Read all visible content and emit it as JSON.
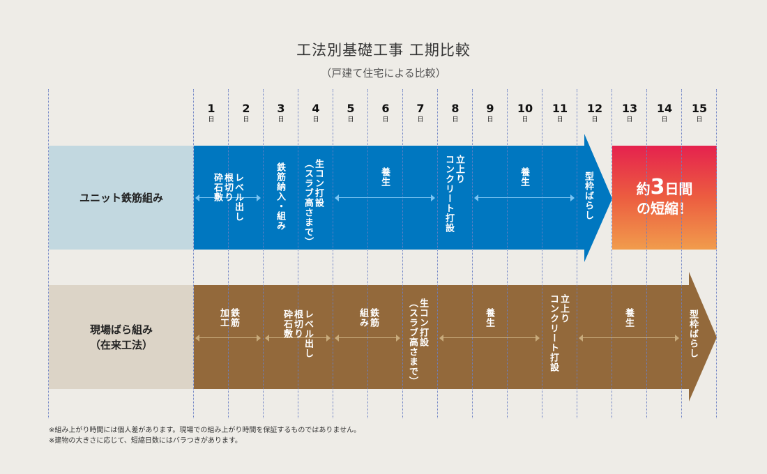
{
  "title": "工法別基礎工事 工期比較",
  "subtitle": "（戸建て住宅による比較）",
  "days": [
    "1",
    "2",
    "3",
    "4",
    "5",
    "6",
    "7",
    "8",
    "9",
    "10",
    "11",
    "12",
    "13",
    "14",
    "15"
  ],
  "day_unit": "日",
  "rows": {
    "unit": {
      "label": "ユニット鉄筋組み",
      "tasks": {
        "leveling": "レベル出し\n根切り\n砕石敷",
        "rebar": "鉄筋納入・組み",
        "slab": "生コン打設\n（スラブ高さまで）",
        "cure1": "養生",
        "rise": "立上り\nコンクリート打設",
        "cure2": "養生",
        "strip": "型枠ばらし"
      }
    },
    "conventional": {
      "label_line1": "現場ばら組み",
      "label_line2": "（在来工法）",
      "tasks": {
        "rebar_work": "鉄筋\n加工",
        "leveling": "レベル出し\n根切り\n砕石敷",
        "rebar_assembly": "鉄筋\n組み",
        "slab": "生コン打設\n（スラブ高さまで）",
        "cure1": "養生",
        "rise": "立上り\nコンクリート打設",
        "cure2": "養生",
        "strip": "型枠ばらし"
      }
    }
  },
  "result": {
    "prefix": "約",
    "number": "3",
    "suffix": "日間",
    "line2": "の短縮！"
  },
  "notes": [
    "※組み上がり時間には個人差があります。現場での組み上がり時間を保証するものではありません。",
    "※建物の大きさに応じて、短縮日数にはバラつきがあります。"
  ],
  "colors": {
    "unit_bar": "#0077c0",
    "unit_label_bg": "#c2d8e0",
    "conventional_bar": "#93693b",
    "conventional_label_bg": "#dcd4c7",
    "result_gradient_top": "#e5224e",
    "result_gradient_bottom": "#f19c4c",
    "grid_line": "#6a7fc4"
  }
}
